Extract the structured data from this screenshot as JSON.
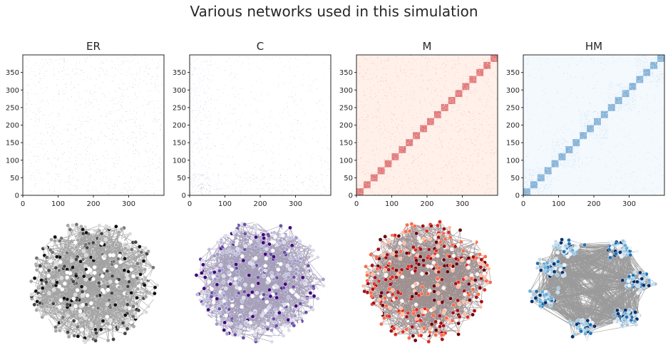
{
  "figure": {
    "title": "Various networks used in this simulation"
  },
  "chart_data": [
    {
      "type": "heatmap",
      "title": "ER",
      "matrix_size": 400,
      "structure": "uniform random (Erdős–Rényi)",
      "colormap": "Greys",
      "color": "#333333",
      "xlim": [
        0,
        400
      ],
      "ylim": [
        0,
        400
      ],
      "xticks": [
        0,
        100,
        200,
        300
      ],
      "yticks": [
        0,
        50,
        100,
        150,
        200,
        250,
        300,
        350
      ]
    },
    {
      "type": "heatmap",
      "title": "C",
      "matrix_size": 400,
      "structure": "random with higher density near low indices",
      "colormap": "Purples",
      "color": "#5b3e96",
      "xlim": [
        0,
        400
      ],
      "ylim": [
        0,
        400
      ],
      "xticks": [
        0,
        100,
        200,
        300
      ],
      "yticks": [
        0,
        50,
        100,
        150,
        200,
        250,
        300,
        350
      ]
    },
    {
      "type": "heatmap",
      "title": "M",
      "matrix_size": 400,
      "structure": "modular: diagonal blocks plus sparse background",
      "block_count": 20,
      "block_size": 20,
      "colormap": "Reds",
      "color": "#cb181d",
      "background": "#fff0e9",
      "xlim": [
        0,
        400
      ],
      "ylim": [
        0,
        400
      ],
      "xticks": [
        0,
        100,
        200,
        300
      ],
      "yticks": [
        0,
        50,
        100,
        150,
        200,
        250,
        300,
        350
      ]
    },
    {
      "type": "heatmap",
      "title": "HM",
      "matrix_size": 400,
      "structure": "hierarchical modular: blocks nested in larger sparse bands along diagonal",
      "block_count": 20,
      "block_size": 20,
      "colormap": "Blues",
      "color": "#2b7bba",
      "background": "#f4f9fe",
      "xlim": [
        0,
        400
      ],
      "ylim": [
        0,
        400
      ],
      "xticks": [
        0,
        100,
        200,
        300
      ],
      "yticks": [
        0,
        50,
        100,
        150,
        200,
        250,
        300,
        350
      ]
    }
  ],
  "networks": [
    {
      "name": "ER-graph",
      "node_colors": [
        "#ffffff",
        "#d9d9d9",
        "#a6a6a6",
        "#737373",
        "#444444",
        "#111111"
      ],
      "edge_color": "#333333",
      "layout": "disc"
    },
    {
      "name": "C-graph",
      "node_colors": [
        "#fcfbfd",
        "#dadaeb",
        "#bcbddc",
        "#9e9ac8",
        "#6a51a3",
        "#3f007d"
      ],
      "edge_color": "#3a2a66",
      "layout": "disc"
    },
    {
      "name": "M-graph",
      "node_colors": [
        "#fff5f0",
        "#fcbba1",
        "#fb6a4a",
        "#de2d26",
        "#a50f15",
        "#67000d"
      ],
      "edge_color": "#2b0a0a",
      "layout": "disc"
    },
    {
      "name": "HM-graph",
      "node_colors": [
        "#eaf3fb",
        "#c6dbef",
        "#9ecae1",
        "#6baed6",
        "#2171b5",
        "#08306b"
      ],
      "edge_color": "#222222",
      "layout": "ring-of-clusters"
    }
  ]
}
